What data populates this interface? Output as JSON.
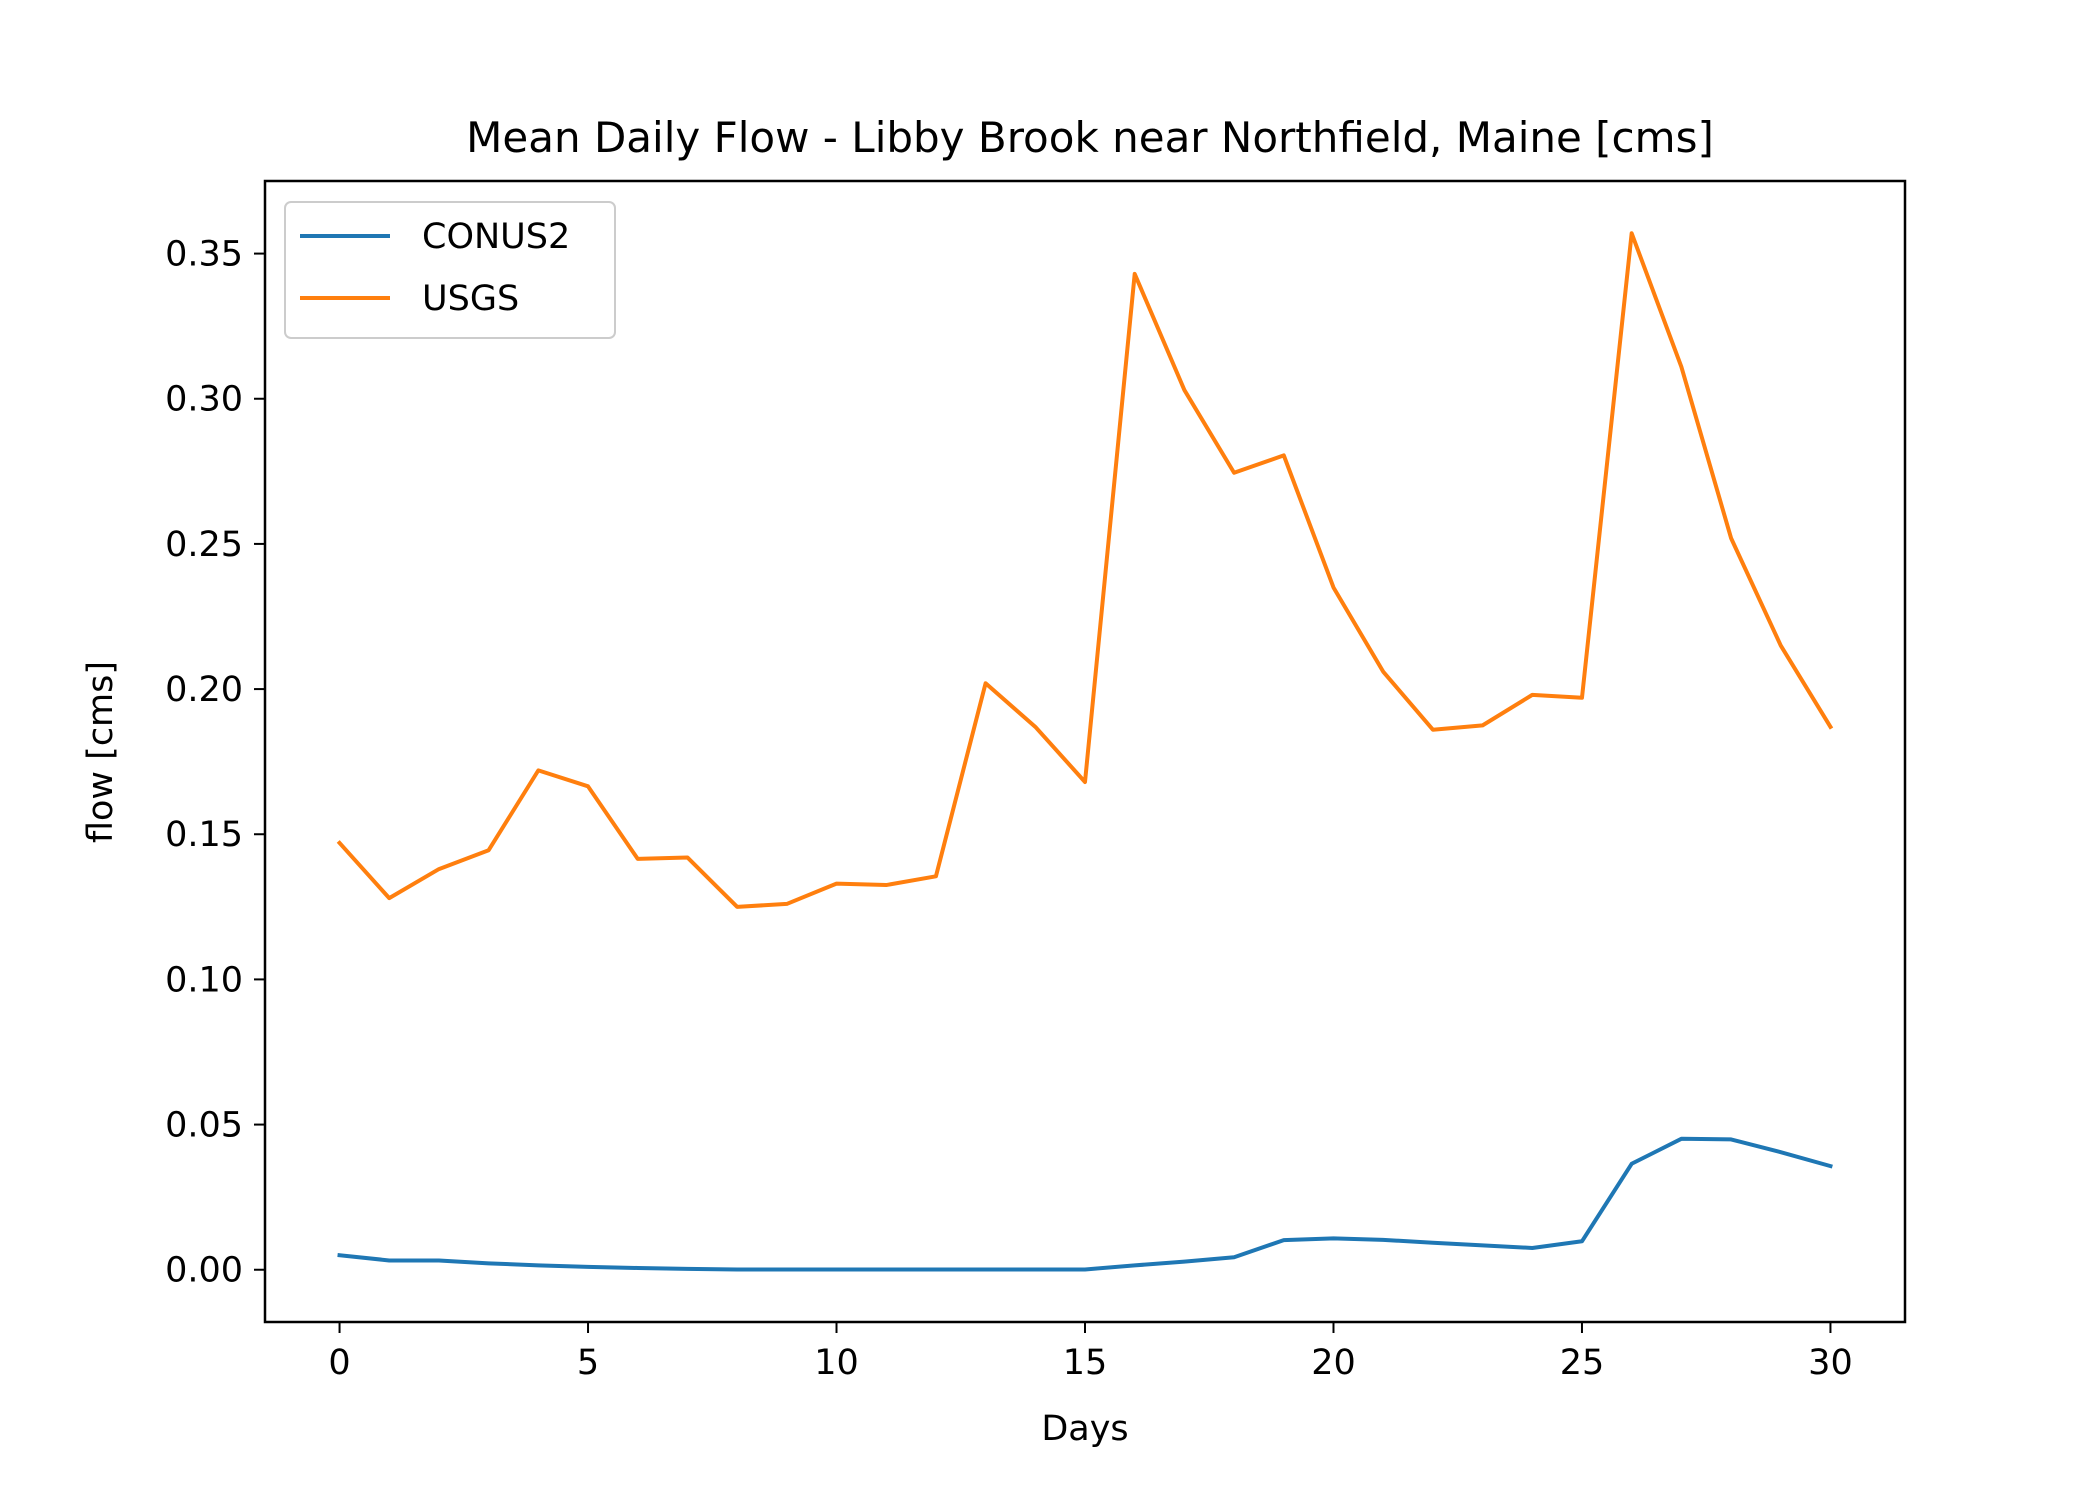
{
  "chart_data": {
    "type": "line",
    "title": "Mean Daily Flow - Libby Brook near Northfield, Maine [cms]",
    "xlabel": "Days",
    "ylabel": "flow [cms]",
    "xlim": [
      -1.5,
      31.5
    ],
    "ylim": [
      -0.018,
      0.375
    ],
    "xticks": [
      0,
      5,
      10,
      15,
      20,
      25,
      30
    ],
    "xtick_labels": [
      "0",
      "5",
      "10",
      "15",
      "20",
      "25",
      "30"
    ],
    "yticks": [
      0.0,
      0.05,
      0.1,
      0.15,
      0.2,
      0.25,
      0.3,
      0.35
    ],
    "ytick_labels": [
      "0.00",
      "0.05",
      "0.10",
      "0.15",
      "0.20",
      "0.25",
      "0.30",
      "0.35"
    ],
    "grid": false,
    "legend_position": "top-left",
    "x": [
      0,
      1,
      2,
      3,
      4,
      5,
      6,
      7,
      8,
      9,
      10,
      11,
      12,
      13,
      14,
      15,
      16,
      17,
      18,
      19,
      20,
      21,
      22,
      23,
      24,
      25,
      26,
      27,
      28,
      29,
      30
    ],
    "series": [
      {
        "name": "CONUS2",
        "color": "#1f77b4",
        "values": [
          0.005,
          0.0032,
          0.0032,
          0.0022,
          0.0015,
          0.001,
          0.0006,
          0.0003,
          0.0001,
          0.0001,
          0.0001,
          0.0001,
          0.0001,
          0.0001,
          0.0001,
          0.0001,
          0.0015,
          0.0028,
          0.0043,
          0.0102,
          0.0108,
          0.0103,
          0.0093,
          0.0084,
          0.0075,
          0.0098,
          0.0365,
          0.0451,
          0.0449,
          0.0405,
          0.0357
        ]
      },
      {
        "name": "USGS",
        "color": "#ff7f0e",
        "values": [
          0.147,
          0.128,
          0.138,
          0.1445,
          0.172,
          0.1665,
          0.1415,
          0.142,
          0.125,
          0.126,
          0.133,
          0.1325,
          0.1355,
          0.202,
          0.187,
          0.168,
          0.343,
          0.303,
          0.2745,
          0.2805,
          0.235,
          0.206,
          0.186,
          0.1875,
          0.198,
          0.197,
          0.357,
          0.311,
          0.252,
          0.215,
          0.187
        ]
      }
    ]
  }
}
